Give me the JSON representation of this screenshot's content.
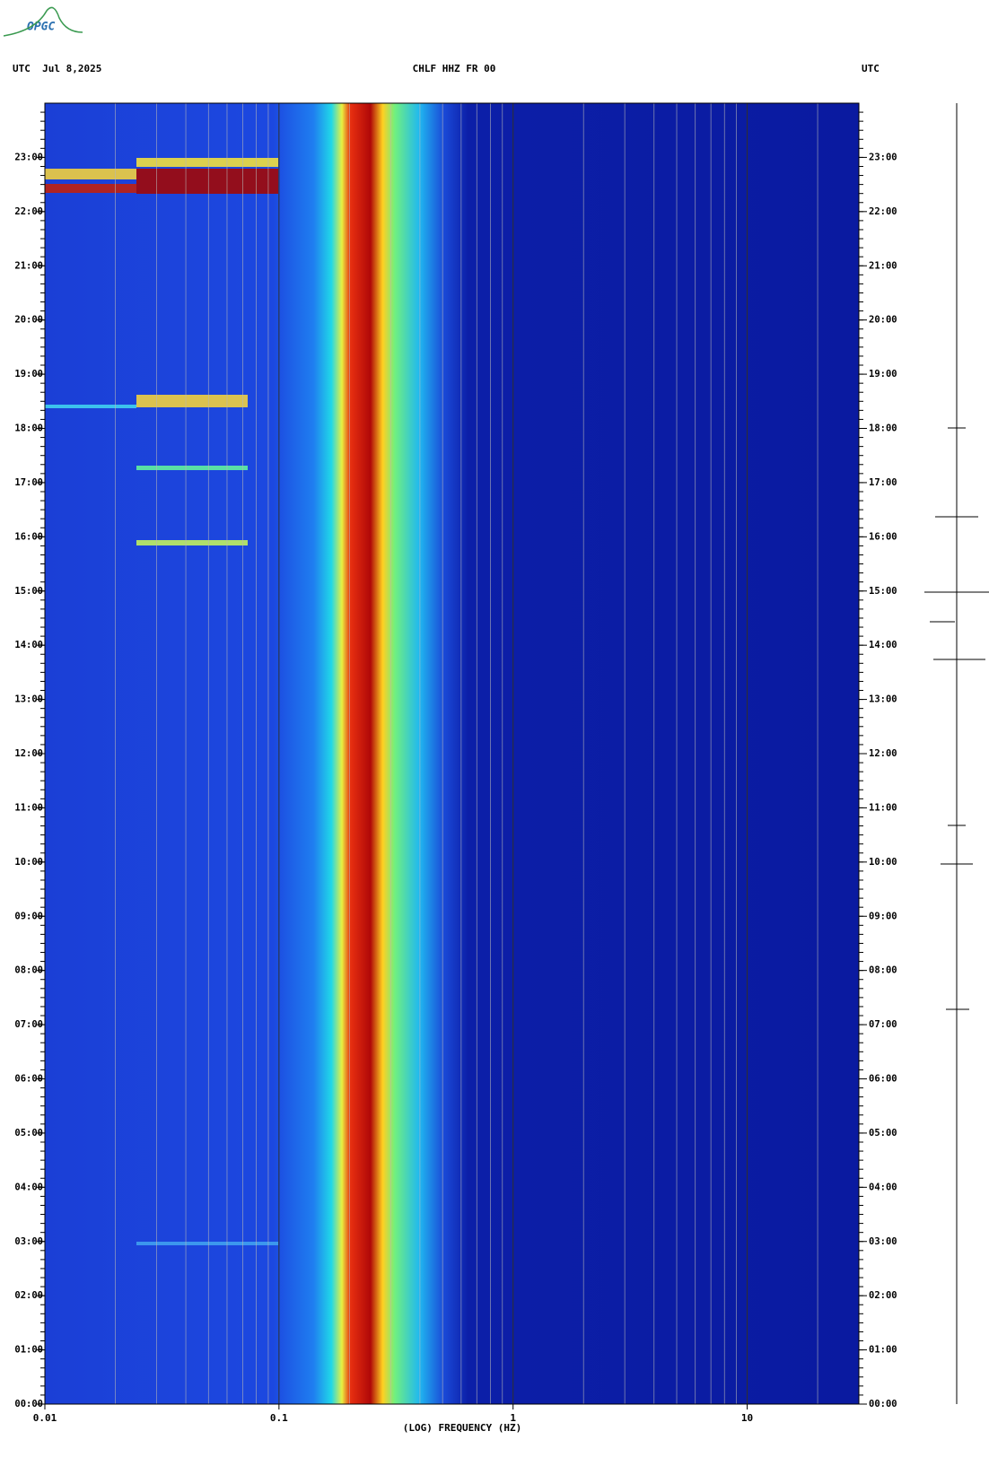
{
  "logo": "OPGC",
  "chart_data": {
    "type": "spectrogram",
    "title": "CHLF HHZ FR 00",
    "left_header": "UTC  Jul 8,2025",
    "right_header": "UTC",
    "xlabel": "(LOG) FREQUENCY (HZ)",
    "xscale": "log",
    "xlim": [
      0.01,
      30
    ],
    "xticks": [
      0.01,
      0.1,
      1,
      10
    ],
    "ylim": [
      0,
      24
    ],
    "yticks": [
      {
        "value": 0,
        "label": "00:00"
      },
      {
        "value": 1,
        "label": "01:00"
      },
      {
        "value": 2,
        "label": "02:00"
      },
      {
        "value": 3,
        "label": "03:00"
      },
      {
        "value": 4,
        "label": "04:00"
      },
      {
        "value": 5,
        "label": "05:00"
      },
      {
        "value": 6,
        "label": "06:00"
      },
      {
        "value": 7,
        "label": "07:00"
      },
      {
        "value": 8,
        "label": "08:00"
      },
      {
        "value": 9,
        "label": "09:00"
      },
      {
        "value": 10,
        "label": "10:00"
      },
      {
        "value": 11,
        "label": "11:00"
      },
      {
        "value": 12,
        "label": "12:00"
      },
      {
        "value": 13,
        "label": "13:00"
      },
      {
        "value": 14,
        "label": "14:00"
      },
      {
        "value": 15,
        "label": "15:00"
      },
      {
        "value": 16,
        "label": "16:00"
      },
      {
        "value": 17,
        "label": "17:00"
      },
      {
        "value": 18,
        "label": "18:00"
      },
      {
        "value": 19,
        "label": "19:00"
      },
      {
        "value": 20,
        "label": "20:00"
      },
      {
        "value": 21,
        "label": "21:00"
      },
      {
        "value": 22,
        "label": "22:00"
      },
      {
        "value": 23,
        "label": "23:00"
      }
    ],
    "grid": true
  }
}
